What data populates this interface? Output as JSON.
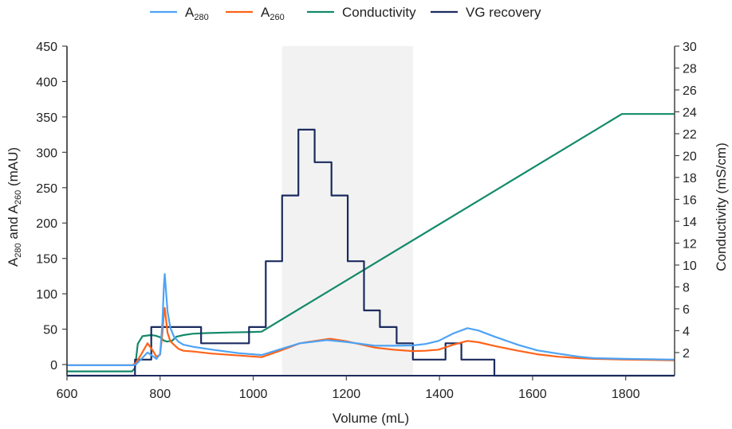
{
  "chart_data": {
    "type": "line",
    "title": "",
    "xlabel": "Volume (mL)",
    "ylabel_left": {
      "base": "A",
      "sub1": "280",
      "mid": " and A",
      "sub2": "260",
      "tail": " (mAU)"
    },
    "ylabel_right": "Conductivity (mS/cm)",
    "xlim": [
      600,
      1905
    ],
    "ylim_left": [
      -15.75,
      450
    ],
    "ylim_right": [
      -0.11,
      30
    ],
    "x_ticks": [
      600,
      800,
      1000,
      1200,
      1400,
      1600,
      1800
    ],
    "y_ticks_left": [
      0,
      50,
      100,
      150,
      200,
      250,
      300,
      350,
      400,
      450
    ],
    "y_ticks_right": [
      2,
      4,
      6,
      8,
      10,
      12,
      14,
      16,
      18,
      20,
      22,
      24,
      26,
      28,
      30
    ],
    "grid": false,
    "legend_position": "top",
    "shaded_region": {
      "x_start": 1062,
      "x_end": 1343,
      "color": "#f2f2f2"
    },
    "series": [
      {
        "name": "A280",
        "label_base": "A",
        "label_sub": "280",
        "axis": "left",
        "color": "#4da3f5",
        "x": [
          600,
          740,
          748,
          760,
          773,
          784,
          792,
          800,
          805,
          808,
          810,
          812,
          816,
          822,
          830,
          840,
          850,
          872,
          912,
          970,
          1018,
          1060,
          1100,
          1158,
          1200,
          1261,
          1300,
          1342,
          1370,
          1398,
          1430,
          1460,
          1484,
          1520,
          1569,
          1610,
          1655,
          1700,
          1732,
          1800,
          1905
        ],
        "y": [
          -1,
          -1,
          0,
          8,
          17,
          12,
          8,
          15,
          60,
          110,
          128,
          110,
          75,
          52,
          39,
          32,
          28,
          25,
          21,
          16,
          13.5,
          22,
          30,
          34.5,
          32,
          26.7,
          26.5,
          27,
          29,
          33.4,
          44,
          51.4,
          48,
          39,
          27.8,
          20,
          15.4,
          11,
          9,
          8,
          7
        ]
      },
      {
        "name": "A260",
        "label_base": "A",
        "label_sub": "260",
        "axis": "left",
        "color": "#ff6319",
        "x": [
          600,
          740,
          748,
          760,
          773,
          784,
          792,
          800,
          805,
          808,
          810,
          812,
          816,
          822,
          830,
          840,
          850,
          872,
          912,
          970,
          1018,
          1060,
          1100,
          1165,
          1200,
          1261,
          1300,
          1342,
          1370,
          1398,
          1430,
          1460,
          1484,
          1520,
          1569,
          1610,
          1655,
          1700,
          1732,
          1800,
          1905
        ],
        "y": [
          -1,
          -1,
          2,
          15,
          30,
          20,
          11,
          14,
          45,
          72,
          80,
          68,
          45,
          33,
          27.8,
          22,
          19.5,
          18.3,
          15.4,
          12.7,
          10.5,
          20,
          30,
          36.4,
          33,
          24,
          21,
          19,
          19.5,
          21,
          28,
          33.4,
          31.5,
          26,
          19.5,
          14.5,
          11,
          9,
          8,
          7,
          6
        ]
      },
      {
        "name": "Conductivity",
        "label_base": "Conductivity",
        "label_sub": "",
        "axis": "right",
        "color": "#138a6a",
        "x": [
          600,
          740,
          746,
          752,
          762,
          780,
          790,
          800,
          808,
          815,
          826,
          835,
          850,
          870,
          900,
          950,
          1000,
          1018,
          1792,
          1905
        ],
        "y": [
          0.28,
          0.28,
          0.6,
          2.8,
          3.5,
          3.6,
          3.55,
          3.4,
          3.1,
          3.0,
          3.1,
          3.45,
          3.6,
          3.72,
          3.78,
          3.84,
          3.88,
          3.91,
          23.8,
          23.8
        ]
      },
      {
        "name": "VG recovery",
        "label_base": "VG recovery",
        "label_sub": "",
        "axis": "left",
        "step": true,
        "color": "#1b2b5e",
        "x": [
          600,
          746,
          781,
          888,
          991,
          1027,
          1062,
          1097,
          1132,
          1168,
          1203,
          1238,
          1272,
          1308,
          1343,
          1413,
          1447,
          1518,
          1905
        ],
        "y": [
          -15.75,
          7,
          53,
          30,
          53,
          146,
          239,
          332,
          286,
          239,
          146,
          76.5,
          53,
          30,
          7,
          30,
          7,
          -15.75,
          -15.75
        ]
      }
    ]
  }
}
